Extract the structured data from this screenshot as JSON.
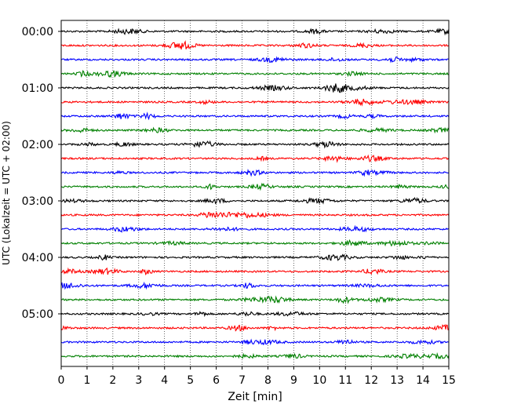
{
  "chart_data": {
    "type": "line",
    "subtype": "helicorder",
    "title": "",
    "xlabel": "Zeit  [min]",
    "ylabel": "UTC (Lokalzeit = UTC + 02:00)",
    "xlim": [
      0,
      15
    ],
    "x_ticks": [
      0,
      1,
      2,
      3,
      4,
      5,
      6,
      7,
      8,
      9,
      10,
      11,
      12,
      13,
      14,
      15
    ],
    "vertical_grid": true,
    "grid_style": "dotted",
    "y_tick_labels": [
      "00:00",
      "01:00",
      "02:00",
      "03:00",
      "04:00",
      "05:00"
    ],
    "traces_per_hour": 4,
    "trace_count": 24,
    "trace_colors": [
      "#000000",
      "#ff0000",
      "#0000ff",
      "#008000"
    ]
  }
}
